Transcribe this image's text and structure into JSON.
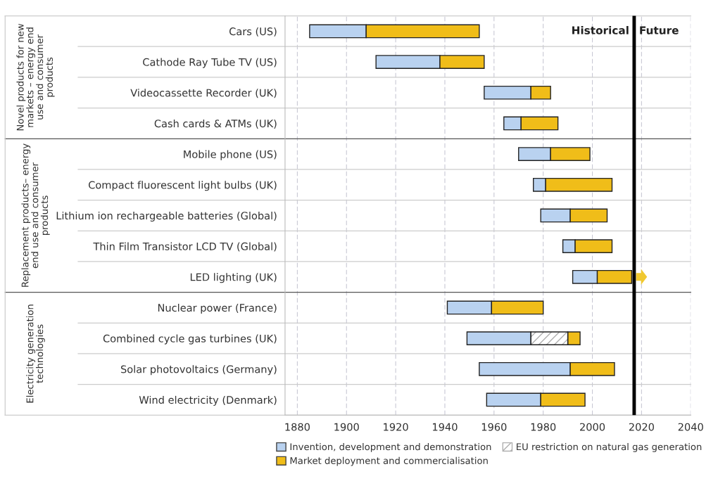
{
  "chart_data": {
    "type": "bar",
    "orientation": "horizontal",
    "categories": [
      "Cars (US)",
      "Cathode Ray Tube TV (US)",
      "Videocassette Recorder (UK)",
      "Cash cards & ATMs (UK)",
      "Mobile phone (US)",
      "Compact fluorescent light bulbs (UK)",
      "Lithium ion rechargeable batteries (Global)",
      "Thin Film Transistor LCD TV (Global)",
      "LED lighting (UK)",
      "Nuclear power (France)",
      "Combined cycle gas turbines (UK)",
      "Solar photovoltaics (Germany)",
      "Wind electricity (Denmark)"
    ],
    "series": [
      {
        "name": "Invention, development and demonstration",
        "color": "#b9d2f0",
        "base": [
          1885,
          1912,
          1956,
          1964,
          1970,
          1976,
          1979,
          1988,
          1992,
          1941,
          1949,
          1954,
          1957
        ],
        "values": [
          23,
          26,
          19,
          7,
          13,
          5,
          12,
          5,
          10,
          18,
          26,
          37,
          22
        ]
      },
      {
        "name": "EU restriction on natural gas generation",
        "color": "#ffffff",
        "base": [
          null,
          null,
          null,
          null,
          null,
          null,
          null,
          null,
          null,
          null,
          1975,
          null,
          null
        ],
        "values": [
          null,
          null,
          null,
          null,
          null,
          null,
          null,
          null,
          null,
          null,
          15,
          null,
          null
        ]
      },
      {
        "name": "Market deployment and commercialisation",
        "color": "#f0bd19",
        "base": [
          1908,
          1938,
          1975,
          1971,
          1983,
          1981,
          1991,
          1993,
          2002,
          1959,
          1990,
          1991,
          1979
        ],
        "values": [
          46,
          18,
          8,
          15,
          16,
          27,
          15,
          15,
          14,
          21,
          5,
          18,
          18
        ]
      }
    ],
    "xlim": [
      1875,
      2040
    ],
    "xticks": [
      1880,
      1900,
      1920,
      1940,
      1960,
      1980,
      2000,
      2020,
      2040
    ],
    "grid": "x",
    "legend": "bottom",
    "ref_lines": [
      {
        "axis": "x",
        "value": 2017,
        "color": "#000000"
      }
    ],
    "annotations": [
      "Novel products for new\nmarkets – energy end\nuse and consumer\nproducts",
      "Replacement products– energy\nend use and consumer\nproducts",
      "Electricity generation\ntechnologies",
      "Historical",
      "Future"
    ]
  }
}
